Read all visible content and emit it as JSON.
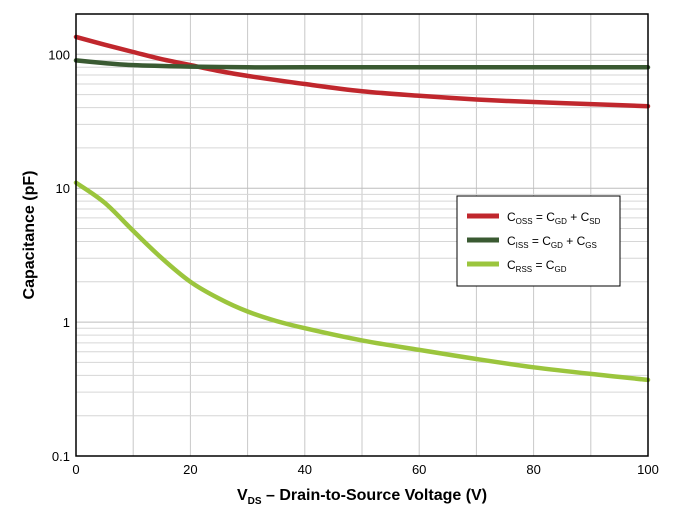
{
  "chart_data": {
    "type": "line",
    "xlabel": {
      "main": "V",
      "sub": "DS",
      "rest": " – Drain-to-Source Voltage (V)"
    },
    "ylabel": "Capacitance (pF)",
    "xlim": [
      0,
      100
    ],
    "ylim": [
      0.1,
      200
    ],
    "yscale": "log",
    "grid": true,
    "legend_position": "right",
    "x_ticks": [
      0,
      20,
      40,
      60,
      80,
      100
    ],
    "x_tick_labels": [
      "0",
      "20",
      "40",
      "60",
      "80",
      "100"
    ],
    "y_ticks": [
      0.1,
      1,
      10,
      100
    ],
    "y_tick_labels": [
      "0.1",
      "1",
      "10",
      "100"
    ],
    "series": [
      {
        "id": "coss",
        "color": "#c0272d",
        "legend": {
          "base": "C",
          "sub": "OSS",
          "mid1": " = C",
          "sub2": "GD",
          "mid2": " + C",
          "sub3": "SD"
        },
        "x": [
          0,
          5,
          10,
          15,
          20,
          25,
          30,
          40,
          50,
          60,
          70,
          80,
          90,
          100
        ],
        "y": [
          135,
          118,
          104,
          92,
          83,
          75,
          69,
          60,
          53,
          49,
          46,
          44,
          42.5,
          41
        ]
      },
      {
        "id": "ciss",
        "color": "#3a5a32",
        "legend": {
          "base": "C",
          "sub": "ISS",
          "mid1": " = C",
          "sub2": "GD",
          "mid2": " + C",
          "sub3": "GS"
        },
        "x": [
          0,
          5,
          10,
          20,
          30,
          40,
          60,
          80,
          100
        ],
        "y": [
          90,
          86,
          83,
          81,
          80,
          80,
          80,
          80,
          80
        ]
      },
      {
        "id": "crss",
        "color": "#9bc53d",
        "legend": {
          "base": "C",
          "sub": "RSS",
          "mid1": " = C",
          "sub2": "GD"
        },
        "x": [
          0,
          5,
          10,
          15,
          20,
          25,
          30,
          35,
          40,
          50,
          60,
          70,
          80,
          90,
          100
        ],
        "y": [
          11,
          7.8,
          4.8,
          3,
          2,
          1.5,
          1.2,
          1.02,
          0.9,
          0.73,
          0.62,
          0.53,
          0.46,
          0.41,
          0.37
        ]
      }
    ]
  }
}
